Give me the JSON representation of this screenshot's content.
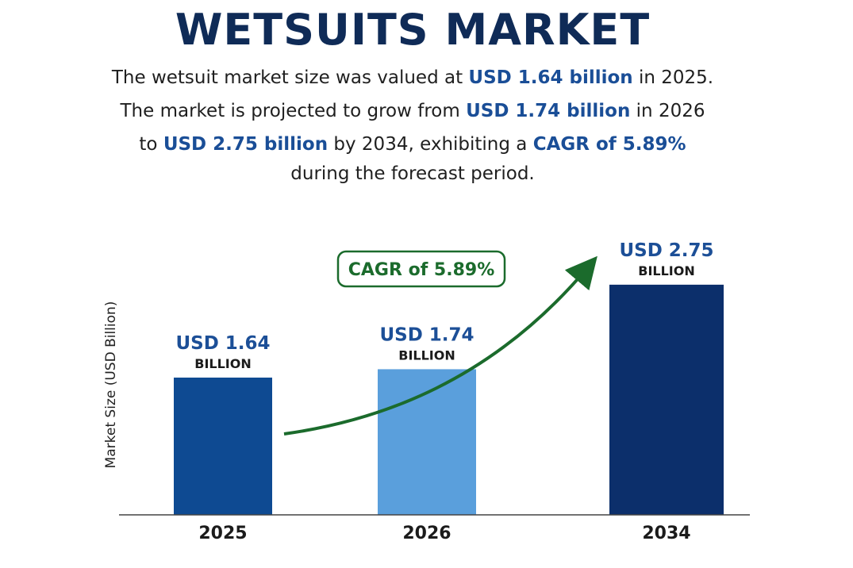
{
  "title": "WETSUITS MARKET",
  "description": {
    "line1": {
      "a": "The wetsuit market size was valued at ",
      "b": "USD 1.64 billion",
      "c": " in 2025."
    },
    "line2": {
      "a": "The market is projected to grow from ",
      "b": "USD 1.74 billion",
      "c": " in 2026"
    },
    "line3": {
      "a": "to ",
      "b": "USD 2.75 billion",
      "c": " by 2034, exhibiting a ",
      "d": "CAGR of 5.89%"
    },
    "line4": "during the forecast period."
  },
  "colors": {
    "title": "#0f2b57",
    "highlight": "#1a4e97",
    "bar_dark": "#0e4a92",
    "bar_light": "#5a9fdc",
    "bar_darkest": "#0c2f6b",
    "arrow": "#1b6b2c"
  },
  "chart_data": {
    "type": "bar",
    "categories": [
      "2025",
      "2026",
      "2034"
    ],
    "values": [
      1.64,
      1.74,
      2.75
    ],
    "value_labels": [
      {
        "number": "USD 1.64",
        "unit": "BILLION"
      },
      {
        "number": "USD 1.74",
        "unit": "BILLION"
      },
      {
        "number": "USD 2.75",
        "unit": "BILLION"
      }
    ],
    "bar_colors": [
      "#0e4a92",
      "#5a9fdc",
      "#0c2f6b"
    ],
    "ylabel": "Market Size (USD Billion)",
    "xlabel": "",
    "ylim": [
      0,
      3.2
    ],
    "annotation": "CAGR of 5.89%",
    "grid": false
  }
}
